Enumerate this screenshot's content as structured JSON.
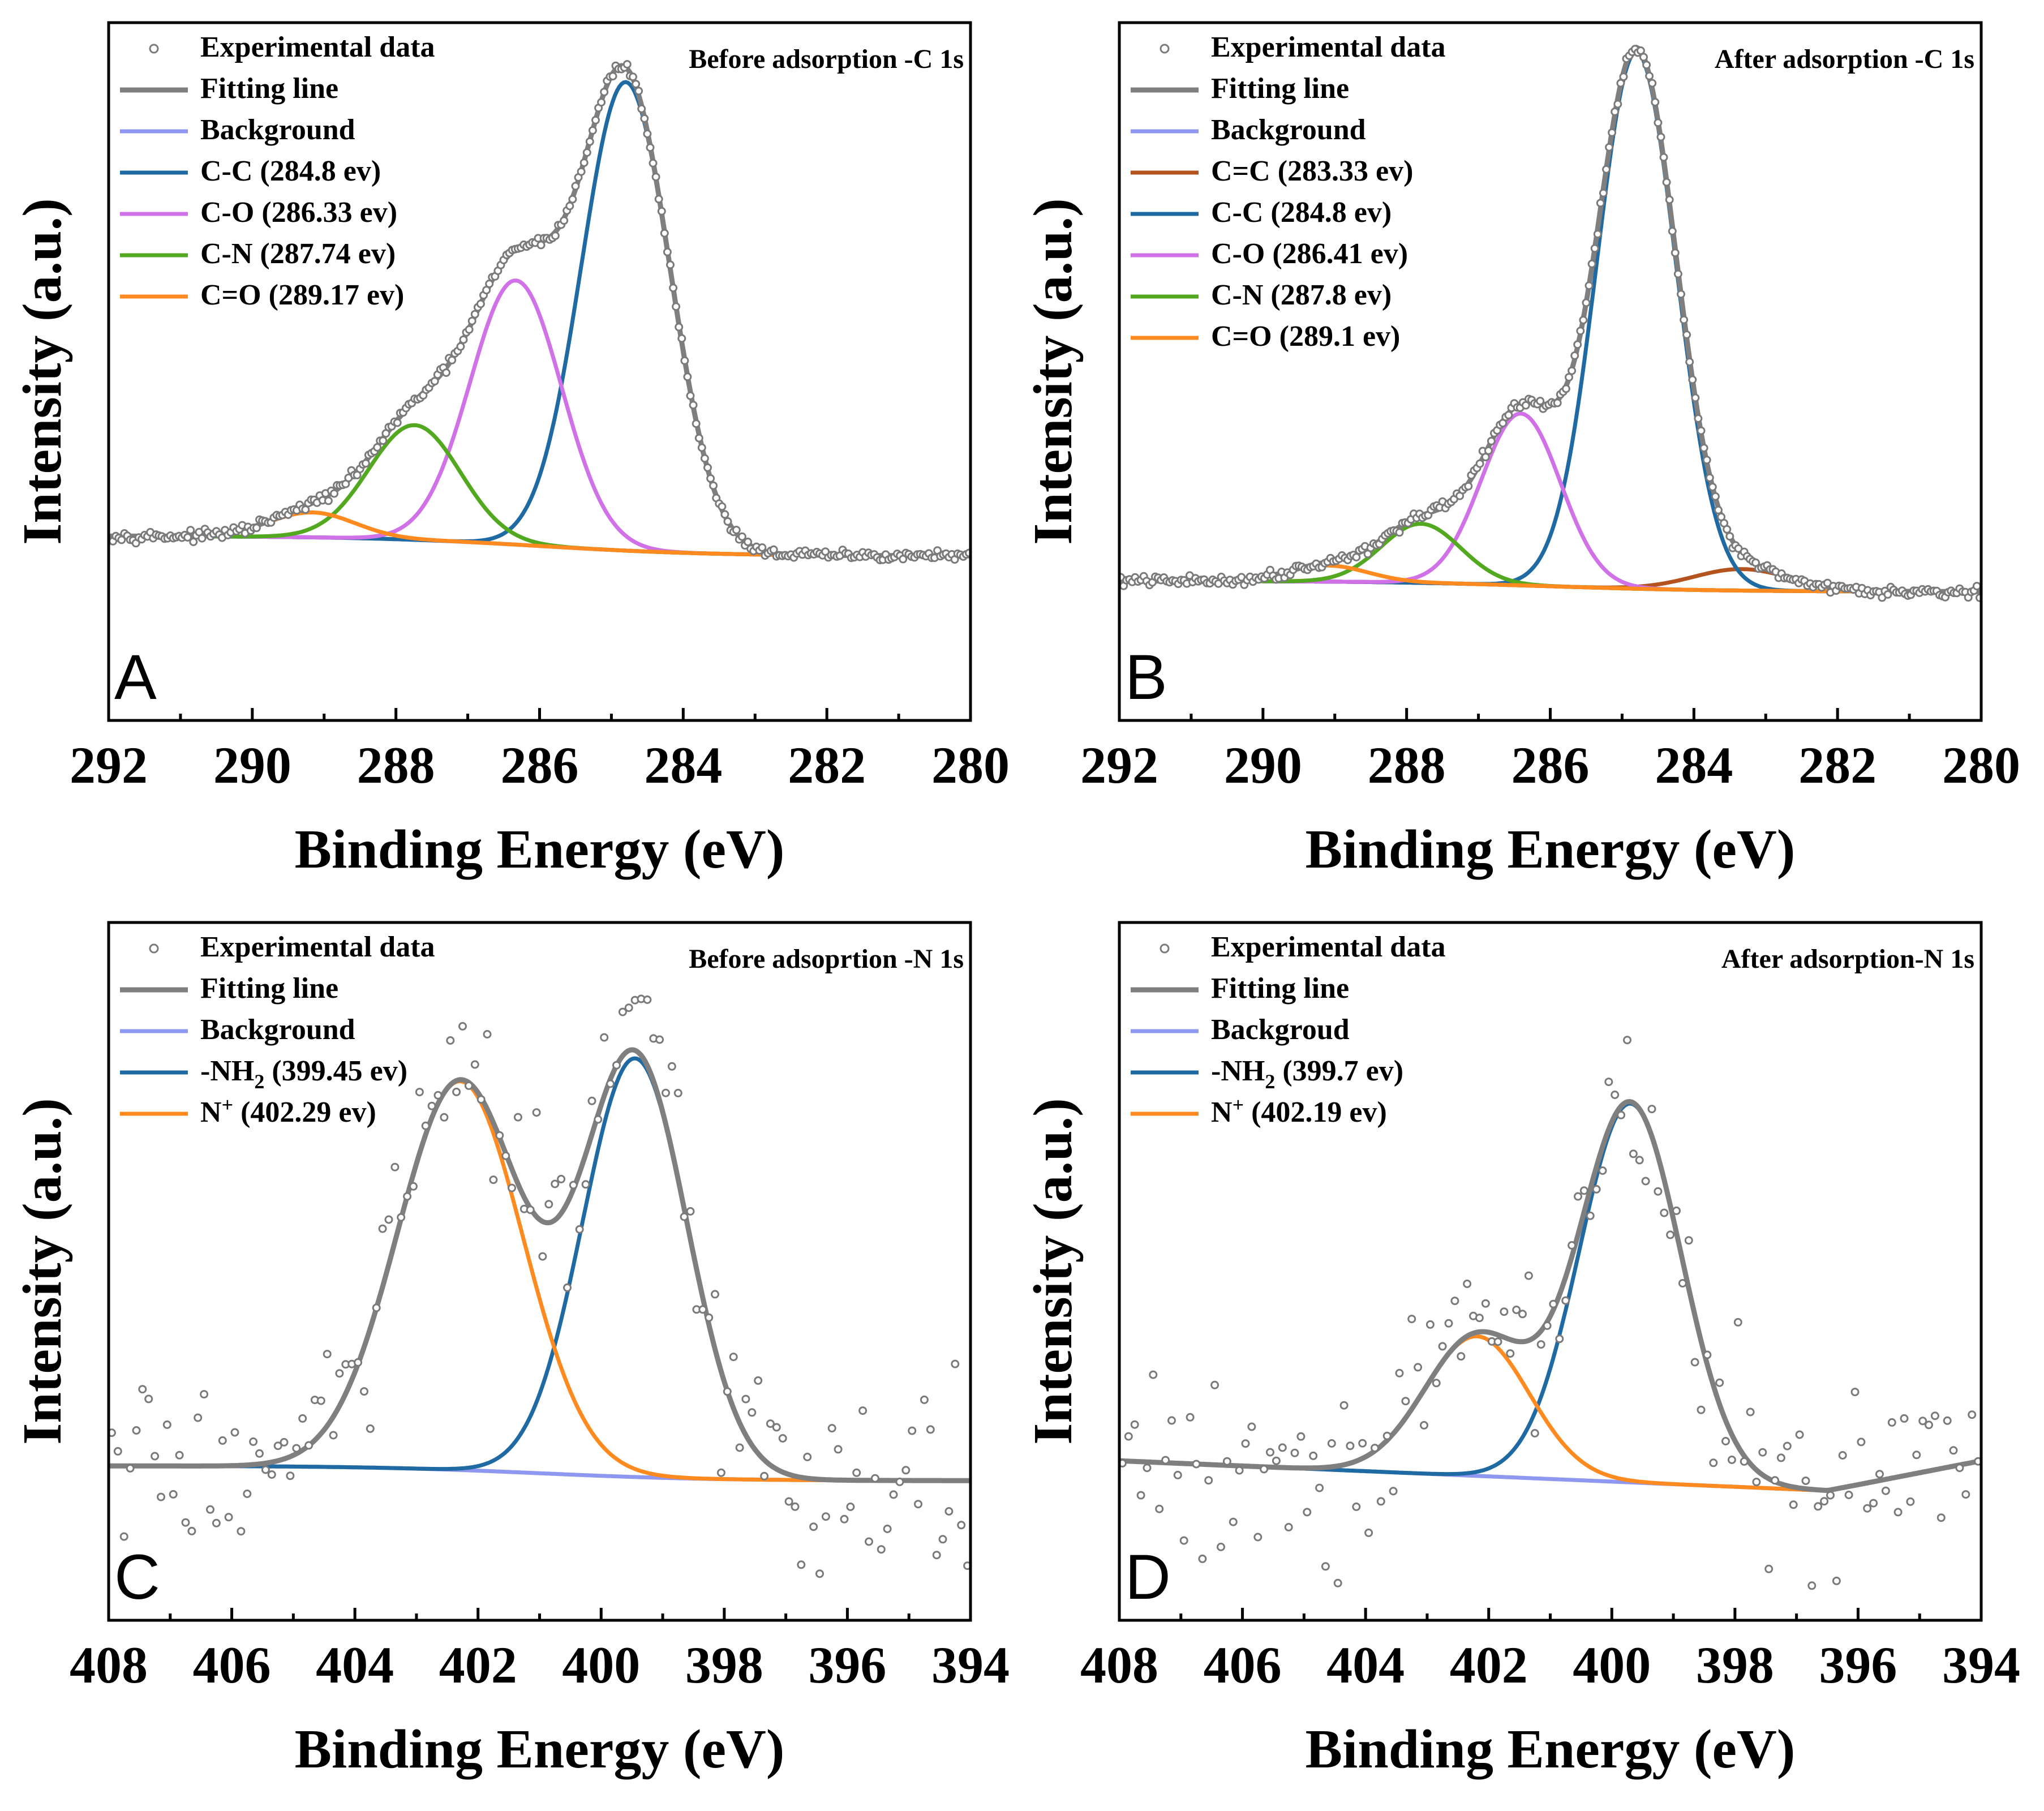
{
  "figure": {
    "colors": {
      "experimental": "#8a8a8a",
      "fit": "#7f7f7f",
      "background": "#8f98f0",
      "cc_double": "#b5531f",
      "cc": "#1f6aa2",
      "co": "#d171e8",
      "cn": "#52a81f",
      "c_double_o": "#ff8a1f",
      "nh2": "#1f6aa2",
      "nplus": "#ff8a1f"
    }
  },
  "chart_data": [
    {
      "type": "line",
      "panel": "A",
      "title": "Before adsorption -C 1s",
      "xlabel": "Binding Energy (eV)",
      "ylabel": "Intensity (a.u.)",
      "xlim": [
        292,
        280
      ],
      "ylim": [
        0,
        1.4
      ],
      "xticks": [
        "292",
        "290",
        "288",
        "286",
        "284",
        "282",
        "280"
      ],
      "baseline": {
        "left": 0.37,
        "right": 0.33
      },
      "legend": [
        {
          "label": "Experimental data",
          "kind": "dots",
          "color": "#8a8a8a"
        },
        {
          "label": "Fitting line",
          "kind": "fit",
          "color": "#7f7f7f"
        },
        {
          "label": "Background",
          "kind": "background",
          "color": "#8f98f0"
        },
        {
          "label": "C-C (284.8 ev)",
          "kind": "peak",
          "color": "#1f6aa2",
          "center": 284.8,
          "height": 0.94,
          "fwhm": 1.45
        },
        {
          "label": "C-O (286.33 ev)",
          "kind": "peak",
          "color": "#d171e8",
          "center": 286.33,
          "height": 0.53,
          "fwhm": 1.5
        },
        {
          "label": "C-N (287.74 ev)",
          "kind": "peak",
          "color": "#52a81f",
          "center": 287.74,
          "height": 0.23,
          "fwhm": 1.5
        },
        {
          "label": "C=O (289.17 ev)",
          "kind": "peak",
          "color": "#ff8a1f",
          "center": 289.17,
          "height": 0.05,
          "fwhm": 1.4
        }
      ],
      "legend_position": "top-left",
      "title_position": "top-right",
      "noise": 0.006,
      "points": 300
    },
    {
      "type": "line",
      "panel": "B",
      "title": "After adsorption -C 1s",
      "xlabel": "Binding Energy (eV)",
      "ylabel": "Intensity (a.u.)",
      "xlim": [
        292,
        280
      ],
      "ylim": [
        0,
        1.3
      ],
      "xticks": [
        "292",
        "290",
        "288",
        "286",
        "284",
        "282",
        "280"
      ],
      "baseline": {
        "left": 0.26,
        "right": 0.24
      },
      "legend": [
        {
          "label": "Experimental data",
          "kind": "dots",
          "color": "#8a8a8a"
        },
        {
          "label": "Fitting line",
          "kind": "fit",
          "color": "#7f7f7f"
        },
        {
          "label": "Background",
          "kind": "background",
          "color": "#8f98f0"
        },
        {
          "label": "C=C (283.33 ev)",
          "kind": "peak",
          "color": "#b5531f",
          "center": 283.33,
          "height": 0.04,
          "fwhm": 1.6
        },
        {
          "label": "C-C (284.8 ev)",
          "kind": "peak",
          "color": "#1f6aa2",
          "center": 284.8,
          "height": 1.0,
          "fwhm": 1.3
        },
        {
          "label": "C-O (286.41 ev)",
          "kind": "peak",
          "color": "#d171e8",
          "center": 286.41,
          "height": 0.32,
          "fwhm": 1.3
        },
        {
          "label": "C-N (287.8 ev)",
          "kind": "peak",
          "color": "#52a81f",
          "center": 287.8,
          "height": 0.11,
          "fwhm": 1.3
        },
        {
          "label": "C=O (289.1 ev)",
          "kind": "peak",
          "color": "#ff8a1f",
          "center": 289.1,
          "height": 0.03,
          "fwhm": 1.3
        }
      ],
      "legend_position": "top-left",
      "title_position": "top-right",
      "noise": 0.006,
      "points": 300
    },
    {
      "type": "line",
      "panel": "C",
      "title": "Before adsoprtion -N 1s",
      "xlabel": "Binding Energy (eV)",
      "ylabel": "Intensity (a.u.)",
      "xlim": [
        408,
        394
      ],
      "ylim": [
        0,
        1.4
      ],
      "xticks": [
        "408",
        "406",
        "404",
        "402",
        "400",
        "398",
        "396",
        "394"
      ],
      "baseline": {
        "left": 0.31,
        "right": 0.28
      },
      "legend": [
        {
          "label": "Experimental data",
          "kind": "dots",
          "color": "#8a8a8a"
        },
        {
          "label": "Fitting line",
          "kind": "fit",
          "color": "#7f7f7f"
        },
        {
          "label": "Background",
          "kind": "background",
          "color": "#8f98f0"
        },
        {
          "label": "-NH",
          "sub": "2",
          "rest": " (399.45 ev)",
          "kind": "peak",
          "color": "#1f6aa2",
          "center": 399.45,
          "height": 0.84,
          "fwhm": 2.0
        },
        {
          "label": "N",
          "sup": "+",
          "rest": " (402.29 ev)",
          "kind": "peak",
          "color": "#ff8a1f",
          "center": 402.29,
          "height": 0.78,
          "fwhm": 2.4
        }
      ],
      "legend_position": "top-left",
      "title_position": "top-right",
      "noise": 0.12,
      "points": 140
    },
    {
      "type": "line",
      "panel": "D",
      "title": "After adsorption-N 1s",
      "xlabel": "Binding Energy (eV)",
      "ylabel": "Intensity (a.u.)",
      "xlim": [
        408,
        394
      ],
      "ylim": [
        0,
        1.4
      ],
      "xticks": [
        "408",
        "406",
        "404",
        "402",
        "400",
        "398",
        "396",
        "394"
      ],
      "baseline": {
        "left": 0.32,
        "right": 0.32,
        "min": 0.26,
        "min_at": 396.5
      },
      "legend": [
        {
          "label": "Experimental data",
          "kind": "dots",
          "color": "#8a8a8a"
        },
        {
          "label": "Fitting line",
          "kind": "fit",
          "color": "#7f7f7f"
        },
        {
          "label": "Backgroud",
          "kind": "background",
          "color": "#8f98f0"
        },
        {
          "label": "-NH",
          "sub": "2",
          "rest": " (399.7 ev)",
          "kind": "peak",
          "color": "#1f6aa2",
          "center": 399.7,
          "height": 0.76,
          "fwhm": 1.95
        },
        {
          "label": "N",
          "sup": "+",
          "rest": " (402.19 ev)",
          "kind": "peak",
          "color": "#ff8a1f",
          "center": 402.19,
          "height": 0.28,
          "fwhm": 2.0
        }
      ],
      "legend_position": "top-left",
      "title_position": "top-right",
      "noise": 0.12,
      "points": 140
    }
  ]
}
